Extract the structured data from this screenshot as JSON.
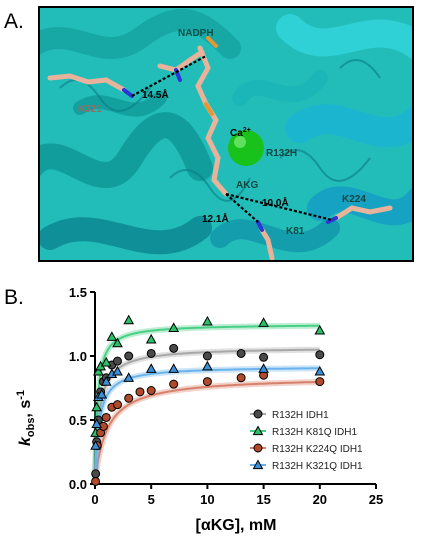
{
  "panel_a": {
    "label": "A.",
    "annotations": {
      "nadph": "NADPH",
      "dist1": "14.5Å",
      "k321": "K321",
      "ca": "Ca",
      "ca_charge": "2+",
      "r132h": "R132H",
      "akg": "AKG",
      "dist2": "10.0Å",
      "k224": "K224",
      "dist3": "12.1Å",
      "k81": "K81"
    },
    "colors": {
      "protein": "#1fc8c4",
      "protein_dark": "#0f8f97",
      "ligand": "#e8b39a",
      "calcium": "#18c21b",
      "nitrogen": "#2b35d8",
      "phosphorus": "#e8962e"
    }
  },
  "panel_b": {
    "label": "B.",
    "chart_data": {
      "type": "scatter",
      "ylabel_main": "k",
      "ylabel_sub": "obs",
      "ylabel_rest": ", s",
      "ylabel_sup": "-1",
      "xlabel": "[αKG], mM",
      "xlim": [
        0,
        25
      ],
      "ylim": [
        0,
        1.5
      ],
      "xticks": [
        "0",
        "5",
        "10",
        "15",
        "20",
        "25"
      ],
      "yticks": [
        "0.0",
        "0.5",
        "1.0",
        "1.5"
      ],
      "legend_position": "bottom-right",
      "series": [
        {
          "name": "R132H IDH1",
          "marker": "circle",
          "color": "#4a4a4a",
          "fit_color": "#a8a8a8",
          "vmax": 1.07,
          "km": 0.42,
          "start": 0.08,
          "points": [
            [
              0.06,
              0.08
            ],
            [
              0.15,
              0.33
            ],
            [
              0.3,
              0.5
            ],
            [
              0.5,
              0.72
            ],
            [
              0.75,
              0.8
            ],
            [
              1.0,
              0.83
            ],
            [
              1.5,
              0.93
            ],
            [
              2.0,
              0.96
            ],
            [
              3.0,
              1.0
            ],
            [
              5.0,
              1.02
            ],
            [
              7.0,
              1.06
            ],
            [
              10.0,
              1.0
            ],
            [
              13.0,
              1.02
            ],
            [
              15.0,
              0.99
            ],
            [
              20.0,
              1.01
            ]
          ]
        },
        {
          "name": "R132H K81Q IDH1",
          "marker": "triangle",
          "color": "#2bbf6a",
          "fit_color": "#48cf86",
          "vmax": 1.25,
          "km": 0.22,
          "start": 0.0,
          "points": [
            [
              0.05,
              0.4
            ],
            [
              0.15,
              0.6
            ],
            [
              0.3,
              0.88
            ],
            [
              0.5,
              0.92
            ],
            [
              1.0,
              0.95
            ],
            [
              1.5,
              1.15
            ],
            [
              2.0,
              1.1
            ],
            [
              3.0,
              1.28
            ],
            [
              5.0,
              1.13
            ],
            [
              7.0,
              1.22
            ],
            [
              10.0,
              1.27
            ],
            [
              15.0,
              1.26
            ],
            [
              20.0,
              1.2
            ]
          ]
        },
        {
          "name": "R132H K224Q IDH1",
          "marker": "circle",
          "color": "#b14a2a",
          "fit_color": "#d7806a",
          "vmax": 0.84,
          "km": 1.1,
          "start": 0.02,
          "points": [
            [
              0.05,
              0.02
            ],
            [
              0.2,
              0.3
            ],
            [
              0.5,
              0.4
            ],
            [
              0.75,
              0.45
            ],
            [
              1.0,
              0.52
            ],
            [
              1.5,
              0.6
            ],
            [
              2.0,
              0.62
            ],
            [
              3.0,
              0.67
            ],
            [
              4.0,
              0.72
            ],
            [
              5.0,
              0.73
            ],
            [
              7.0,
              0.78
            ],
            [
              10.0,
              0.8
            ],
            [
              13.0,
              0.83
            ],
            [
              15.0,
              0.85
            ],
            [
              20.0,
              0.8
            ]
          ]
        },
        {
          "name": "R132H K321Q IDH1",
          "marker": "triangle",
          "color": "#3a8fd6",
          "fit_color": "#69b3ea",
          "vmax": 0.92,
          "km": 0.35,
          "start": 0.0,
          "points": [
            [
              0.05,
              0.3
            ],
            [
              0.15,
              0.47
            ],
            [
              0.3,
              0.68
            ],
            [
              0.6,
              0.7
            ],
            [
              1.0,
              0.8
            ],
            [
              1.5,
              0.86
            ],
            [
              2.0,
              0.88
            ],
            [
              3.0,
              0.83
            ],
            [
              5.0,
              0.9
            ],
            [
              7.0,
              0.9
            ],
            [
              10.0,
              0.92
            ],
            [
              15.0,
              0.9
            ],
            [
              20.0,
              0.88
            ]
          ]
        }
      ]
    }
  }
}
